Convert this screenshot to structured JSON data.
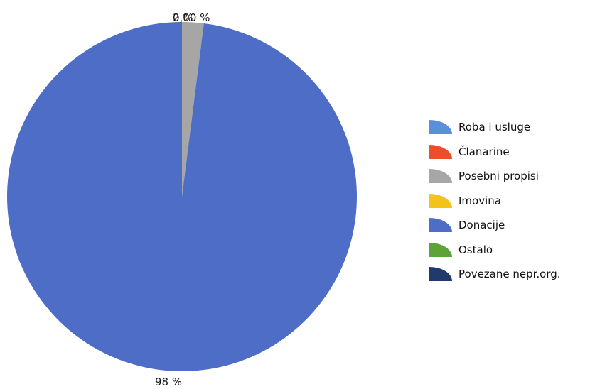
{
  "chart_data": {
    "type": "pie",
    "slices": [
      {
        "label": "Roba i usluge",
        "value": 0,
        "color": "#5B8FD9"
      },
      {
        "label": "Članarine",
        "value": 0,
        "color": "#E8502A"
      },
      {
        "label": "Posebni propisi",
        "value": 2,
        "color": "#A6A6A6"
      },
      {
        "label": "Imovina",
        "value": 0,
        "color": "#F2C318"
      },
      {
        "label": "Donacije",
        "value": 98,
        "color": "#4D6DC6"
      },
      {
        "label": "Ostalo",
        "value": 0,
        "color": "#5EA23A"
      },
      {
        "label": "Povezane nepr.org.",
        "value": 0,
        "color": "#203A6B"
      }
    ],
    "data_labels": [
      "0,00 %",
      "2 %",
      "98 %"
    ],
    "legend_position": "right"
  }
}
